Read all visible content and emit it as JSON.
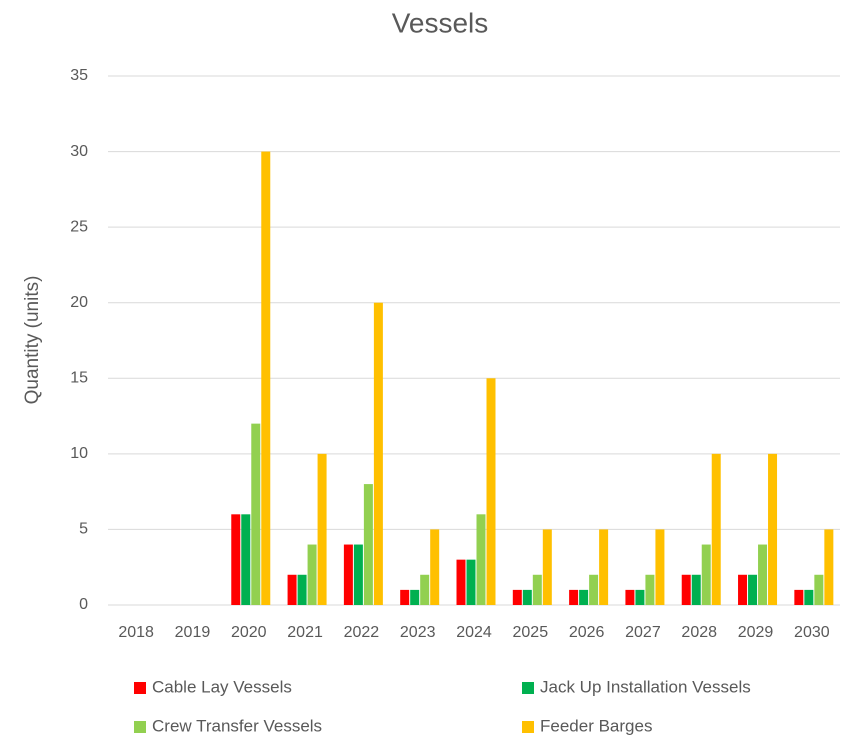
{
  "chart_data": {
    "type": "bar",
    "title": "Vessels",
    "y_label": "Quantity (units)",
    "categories": [
      "2018",
      "2019",
      "2020",
      "2021",
      "2022",
      "2023",
      "2024",
      "2025",
      "2026",
      "2027",
      "2028",
      "2029",
      "2030"
    ],
    "series": [
      {
        "name": "Cable Lay Vessels",
        "color": "#ff0000",
        "values": [
          0,
          0,
          6,
          2,
          4,
          1,
          3,
          1,
          1,
          1,
          2,
          2,
          1
        ]
      },
      {
        "name": "Jack Up Installation Vessels",
        "color": "#00b050",
        "values": [
          0,
          0,
          6,
          2,
          4,
          1,
          3,
          1,
          1,
          1,
          2,
          2,
          1
        ]
      },
      {
        "name": "Crew Transfer Vessels",
        "color": "#92d050",
        "values": [
          0,
          0,
          12,
          4,
          8,
          2,
          6,
          2,
          2,
          2,
          4,
          4,
          2
        ]
      },
      {
        "name": "Feeder Barges",
        "color": "#ffc000",
        "values": [
          0,
          0,
          30,
          10,
          20,
          5,
          15,
          5,
          5,
          5,
          10,
          10,
          5
        ]
      }
    ],
    "ylim": [
      0,
      35
    ],
    "yticks": [
      0,
      5,
      10,
      15,
      20,
      25,
      30,
      35
    ],
    "grid": true,
    "legend": "bottom"
  }
}
